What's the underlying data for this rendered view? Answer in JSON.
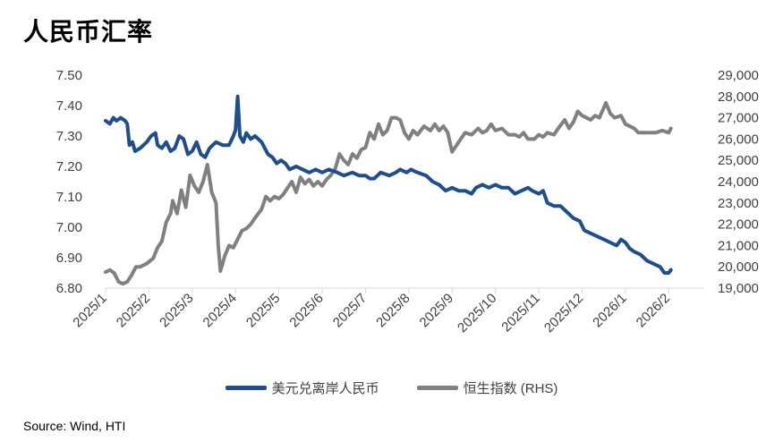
{
  "title": "人民币汇率",
  "source": "Source: Wind, HTI",
  "chart_data": {
    "type": "line",
    "x_ticks": [
      "2025/1",
      "2025/2",
      "2025/3",
      "2025/4",
      "2025/5",
      "2025/6",
      "2025/7",
      "2025/8",
      "2025/9",
      "2025/10",
      "2025/11",
      "2025/12",
      "2026/1",
      "2026/2"
    ],
    "x_range": [
      0,
      13.8
    ],
    "y_left": {
      "min": 6.8,
      "max": 7.5,
      "ticks": [
        "6.80",
        "6.90",
        "7.00",
        "7.10",
        "7.20",
        "7.30",
        "7.40",
        "7.50"
      ]
    },
    "y_right": {
      "min": 19000,
      "max": 29000,
      "ticks": [
        "19,000",
        "20,000",
        "21,000",
        "22,000",
        "23,000",
        "24,000",
        "25,000",
        "26,000",
        "27,000",
        "28,000",
        "29,000"
      ]
    },
    "series": [
      {
        "name": "美元兑离岸人民币",
        "axis": "left",
        "color": "#1f4e8c",
        "points": [
          [
            0.0,
            7.35
          ],
          [
            0.1,
            7.34
          ],
          [
            0.18,
            7.36
          ],
          [
            0.25,
            7.35
          ],
          [
            0.35,
            7.36
          ],
          [
            0.45,
            7.35
          ],
          [
            0.5,
            7.34
          ],
          [
            0.55,
            7.27
          ],
          [
            0.62,
            7.28
          ],
          [
            0.68,
            7.25
          ],
          [
            0.8,
            7.26
          ],
          [
            0.95,
            7.28
          ],
          [
            1.05,
            7.3
          ],
          [
            1.15,
            7.31
          ],
          [
            1.2,
            7.27
          ],
          [
            1.3,
            7.26
          ],
          [
            1.4,
            7.28
          ],
          [
            1.5,
            7.25
          ],
          [
            1.6,
            7.26
          ],
          [
            1.7,
            7.3
          ],
          [
            1.8,
            7.29
          ],
          [
            1.9,
            7.24
          ],
          [
            2.0,
            7.25
          ],
          [
            2.1,
            7.28
          ],
          [
            2.2,
            7.24
          ],
          [
            2.3,
            7.23
          ],
          [
            2.4,
            7.26
          ],
          [
            2.55,
            7.28
          ],
          [
            2.7,
            7.27
          ],
          [
            2.85,
            7.27
          ],
          [
            2.95,
            7.3
          ],
          [
            3.0,
            7.32
          ],
          [
            3.05,
            7.43
          ],
          [
            3.1,
            7.3
          ],
          [
            3.18,
            7.28
          ],
          [
            3.25,
            7.31
          ],
          [
            3.35,
            7.29
          ],
          [
            3.45,
            7.3
          ],
          [
            3.6,
            7.28
          ],
          [
            3.75,
            7.24
          ],
          [
            3.85,
            7.23
          ],
          [
            3.95,
            7.21
          ],
          [
            4.05,
            7.22
          ],
          [
            4.15,
            7.21
          ],
          [
            4.25,
            7.19
          ],
          [
            4.4,
            7.2
          ],
          [
            4.55,
            7.19
          ],
          [
            4.7,
            7.18
          ],
          [
            4.85,
            7.19
          ],
          [
            5.0,
            7.18
          ],
          [
            5.15,
            7.19
          ],
          [
            5.35,
            7.18
          ],
          [
            5.5,
            7.17
          ],
          [
            5.7,
            7.18
          ],
          [
            5.85,
            7.17
          ],
          [
            6.0,
            7.17
          ],
          [
            6.1,
            7.16
          ],
          [
            6.2,
            7.16
          ],
          [
            6.35,
            7.18
          ],
          [
            6.55,
            7.17
          ],
          [
            6.7,
            7.18
          ],
          [
            6.8,
            7.19
          ],
          [
            6.95,
            7.18
          ],
          [
            7.05,
            7.19
          ],
          [
            7.2,
            7.18
          ],
          [
            7.4,
            7.17
          ],
          [
            7.55,
            7.15
          ],
          [
            7.7,
            7.14
          ],
          [
            7.85,
            7.12
          ],
          [
            8.0,
            7.13
          ],
          [
            8.15,
            7.12
          ],
          [
            8.3,
            7.12
          ],
          [
            8.45,
            7.11
          ],
          [
            8.55,
            7.13
          ],
          [
            8.7,
            7.14
          ],
          [
            8.85,
            7.13
          ],
          [
            9.0,
            7.14
          ],
          [
            9.15,
            7.13
          ],
          [
            9.3,
            7.13
          ],
          [
            9.45,
            7.11
          ],
          [
            9.6,
            7.12
          ],
          [
            9.75,
            7.13
          ],
          [
            9.85,
            7.12
          ],
          [
            10.0,
            7.11
          ],
          [
            10.1,
            7.12
          ],
          [
            10.2,
            7.08
          ],
          [
            10.35,
            7.07
          ],
          [
            10.5,
            7.07
          ],
          [
            10.65,
            7.05
          ],
          [
            10.8,
            7.03
          ],
          [
            10.95,
            7.02
          ],
          [
            11.05,
            6.99
          ],
          [
            11.2,
            6.98
          ],
          [
            11.35,
            6.97
          ],
          [
            11.5,
            6.96
          ],
          [
            11.65,
            6.95
          ],
          [
            11.8,
            6.94
          ],
          [
            11.9,
            6.96
          ],
          [
            12.0,
            6.95
          ],
          [
            12.1,
            6.93
          ],
          [
            12.2,
            6.92
          ],
          [
            12.35,
            6.91
          ],
          [
            12.5,
            6.89
          ],
          [
            12.65,
            6.88
          ],
          [
            12.8,
            6.87
          ],
          [
            12.9,
            6.85
          ],
          [
            13.0,
            6.85
          ],
          [
            13.05,
            6.86
          ]
        ]
      },
      {
        "name": "恒生指数 (RHS)",
        "axis": "right",
        "color": "#808080",
        "points": [
          [
            0.0,
            19750
          ],
          [
            0.1,
            19850
          ],
          [
            0.2,
            19700
          ],
          [
            0.3,
            19300
          ],
          [
            0.4,
            19200
          ],
          [
            0.5,
            19300
          ],
          [
            0.6,
            19600
          ],
          [
            0.7,
            20000
          ],
          [
            0.8,
            20000
          ],
          [
            0.95,
            20150
          ],
          [
            1.1,
            20400
          ],
          [
            1.2,
            20900
          ],
          [
            1.3,
            21200
          ],
          [
            1.4,
            22100
          ],
          [
            1.5,
            22500
          ],
          [
            1.55,
            23100
          ],
          [
            1.65,
            22500
          ],
          [
            1.75,
            23600
          ],
          [
            1.85,
            22800
          ],
          [
            1.95,
            24300
          ],
          [
            2.05,
            23800
          ],
          [
            2.15,
            23500
          ],
          [
            2.25,
            24000
          ],
          [
            2.35,
            24800
          ],
          [
            2.45,
            23500
          ],
          [
            2.55,
            23000
          ],
          [
            2.6,
            21000
          ],
          [
            2.65,
            19800
          ],
          [
            2.75,
            20500
          ],
          [
            2.85,
            21000
          ],
          [
            2.95,
            20900
          ],
          [
            3.05,
            21300
          ],
          [
            3.15,
            21700
          ],
          [
            3.25,
            21800
          ],
          [
            3.35,
            22000
          ],
          [
            3.45,
            22300
          ],
          [
            3.6,
            22700
          ],
          [
            3.7,
            23300
          ],
          [
            3.8,
            23100
          ],
          [
            3.9,
            23300
          ],
          [
            4.0,
            23200
          ],
          [
            4.1,
            23400
          ],
          [
            4.2,
            23700
          ],
          [
            4.3,
            24000
          ],
          [
            4.4,
            23500
          ],
          [
            4.5,
            24200
          ],
          [
            4.6,
            23900
          ],
          [
            4.7,
            24100
          ],
          [
            4.8,
            23800
          ],
          [
            4.9,
            24000
          ],
          [
            5.0,
            23800
          ],
          [
            5.1,
            24100
          ],
          [
            5.2,
            24300
          ],
          [
            5.3,
            24600
          ],
          [
            5.4,
            25300
          ],
          [
            5.5,
            25000
          ],
          [
            5.6,
            24800
          ],
          [
            5.7,
            25300
          ],
          [
            5.8,
            25100
          ],
          [
            5.9,
            25500
          ],
          [
            6.0,
            25600
          ],
          [
            6.1,
            26300
          ],
          [
            6.2,
            26000
          ],
          [
            6.3,
            26700
          ],
          [
            6.4,
            26200
          ],
          [
            6.5,
            26400
          ],
          [
            6.6,
            27000
          ],
          [
            6.7,
            27000
          ],
          [
            6.8,
            26900
          ],
          [
            6.9,
            26300
          ],
          [
            7.0,
            26000
          ],
          [
            7.1,
            26400
          ],
          [
            7.2,
            26200
          ],
          [
            7.35,
            26600
          ],
          [
            7.5,
            26400
          ],
          [
            7.6,
            26700
          ],
          [
            7.7,
            26400
          ],
          [
            7.8,
            26600
          ],
          [
            7.9,
            26300
          ],
          [
            8.0,
            25400
          ],
          [
            8.1,
            25700
          ],
          [
            8.2,
            26000
          ],
          [
            8.3,
            26300
          ],
          [
            8.45,
            26200
          ],
          [
            8.6,
            26500
          ],
          [
            8.7,
            26300
          ],
          [
            8.8,
            26400
          ],
          [
            8.9,
            26700
          ],
          [
            9.0,
            26400
          ],
          [
            9.15,
            26500
          ],
          [
            9.3,
            26200
          ],
          [
            9.45,
            26200
          ],
          [
            9.55,
            26100
          ],
          [
            9.65,
            26300
          ],
          [
            9.75,
            26000
          ],
          [
            9.9,
            26000
          ],
          [
            10.0,
            26200
          ],
          [
            10.1,
            26100
          ],
          [
            10.2,
            26300
          ],
          [
            10.35,
            26200
          ],
          [
            10.45,
            26500
          ],
          [
            10.6,
            26900
          ],
          [
            10.7,
            26500
          ],
          [
            10.8,
            26800
          ],
          [
            10.9,
            27300
          ],
          [
            11.0,
            27100
          ],
          [
            11.1,
            27000
          ],
          [
            11.2,
            26900
          ],
          [
            11.3,
            27100
          ],
          [
            11.4,
            27000
          ],
          [
            11.55,
            27700
          ],
          [
            11.65,
            27200
          ],
          [
            11.75,
            27000
          ],
          [
            11.9,
            27100
          ],
          [
            12.0,
            26700
          ],
          [
            12.1,
            26600
          ],
          [
            12.2,
            26500
          ],
          [
            12.3,
            26300
          ],
          [
            12.4,
            26300
          ],
          [
            12.55,
            26300
          ],
          [
            12.7,
            26300
          ],
          [
            12.85,
            26400
          ],
          [
            13.0,
            26300
          ],
          [
            13.05,
            26500
          ]
        ]
      }
    ]
  }
}
